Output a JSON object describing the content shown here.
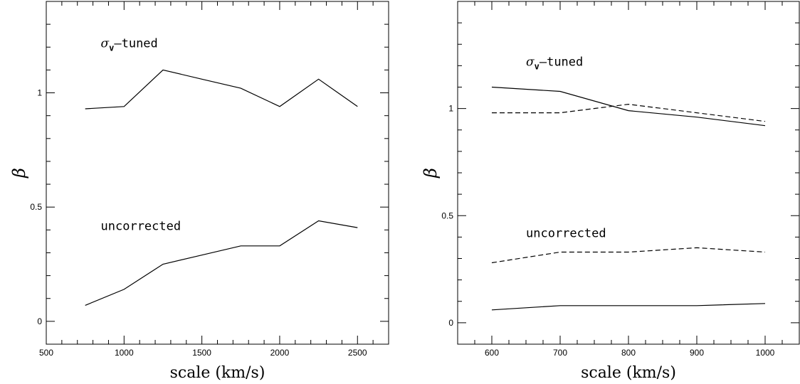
{
  "chart_data": [
    {
      "type": "line",
      "xlabel": "scale (km/s)",
      "ylabel": "β",
      "xlim": [
        500,
        2700
      ],
      "ylim": [
        -0.1,
        1.4
      ],
      "xticks": [
        500,
        1000,
        1500,
        2000,
        2500
      ],
      "yticks": [
        0,
        0.5,
        1
      ],
      "xminor_step": 100,
      "yminor_step": 0.1,
      "grid": false,
      "annotations": [
        {
          "text_sigma": "σ",
          "text_sub": "v",
          "text_rest": "–tuned",
          "x": 850,
          "y": 1.2
        },
        {
          "text": "uncorrected",
          "x": 850,
          "y": 0.4
        }
      ],
      "series": [
        {
          "style": "solid",
          "x": [
            750,
            1000,
            1250,
            1500,
            1750,
            2000,
            2250,
            2500
          ],
          "y": [
            0.93,
            0.94,
            1.1,
            1.06,
            1.02,
            0.94,
            1.06,
            0.94
          ]
        },
        {
          "style": "solid",
          "x": [
            750,
            1000,
            1250,
            1500,
            1750,
            2000,
            2250,
            2500
          ],
          "y": [
            0.07,
            0.14,
            0.25,
            0.29,
            0.33,
            0.33,
            0.44,
            0.41
          ]
        }
      ]
    },
    {
      "type": "line",
      "xlabel": "scale (km/s)",
      "ylabel": "β",
      "xlim": [
        550,
        1050
      ],
      "ylim": [
        -0.1,
        1.5
      ],
      "xticks": [
        600,
        700,
        800,
        900,
        1000
      ],
      "yticks": [
        0,
        0.5,
        1
      ],
      "xminor_step": 25,
      "yminor_step": 0.1,
      "grid": false,
      "annotations": [
        {
          "text_sigma": "σ",
          "text_sub": "v",
          "text_rest": "–tuned",
          "x": 650,
          "y": 1.2
        },
        {
          "text": "uncorrected",
          "x": 650,
          "y": 0.4
        }
      ],
      "series": [
        {
          "style": "solid",
          "x": [
            600,
            700,
            800,
            900,
            1000
          ],
          "y": [
            1.1,
            1.08,
            0.99,
            0.96,
            0.92
          ]
        },
        {
          "style": "dashed",
          "x": [
            600,
            700,
            800,
            900,
            1000
          ],
          "y": [
            0.98,
            0.98,
            1.02,
            0.98,
            0.94
          ]
        },
        {
          "style": "dashed",
          "x": [
            600,
            700,
            800,
            900,
            1000
          ],
          "y": [
            0.28,
            0.33,
            0.33,
            0.35,
            0.33
          ]
        },
        {
          "style": "solid",
          "x": [
            600,
            700,
            800,
            900,
            1000
          ],
          "y": [
            0.06,
            0.08,
            0.08,
            0.08,
            0.09
          ]
        }
      ]
    }
  ]
}
